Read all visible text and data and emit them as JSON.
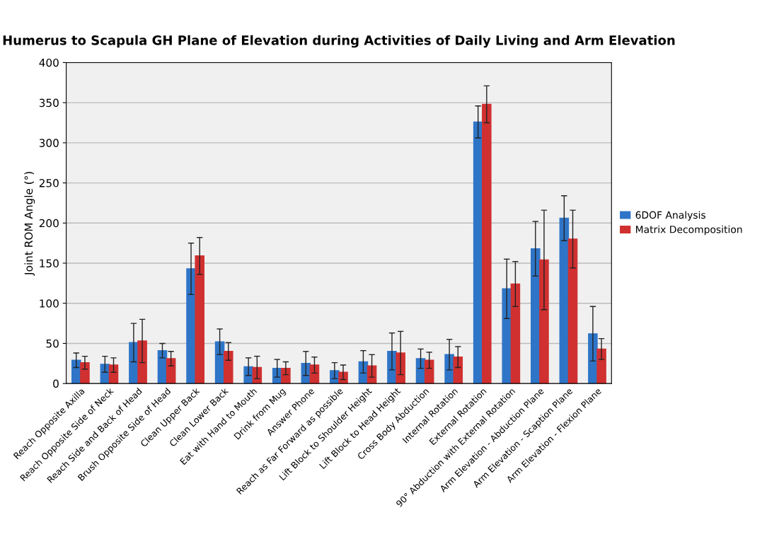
{
  "chart_data": {
    "type": "bar",
    "title": "Humerus to Scapula GH Plane of Elevation during Activities of Daily Living and Arm Elevation",
    "ylabel": "Joint ROM Angle (°)",
    "categories": [
      "Reach Opposite Axilla",
      "Reach Opposite Side of Neck",
      "Reach Side and Back of Head",
      "Brush Opposite Side of Head",
      "Clean Upper Back",
      "Clean Lower Back",
      "Eat with Hand to Mouth",
      "Drink from Mug",
      "Answer Phone",
      "Reach as Far Forward as possible",
      "Lift Block to Shoulder Height",
      "Lift Block to Head Height",
      "Cross Body Abduction",
      "Internal Rotation",
      "External Rotation",
      "90° Abduction with External Rotation",
      "Arm Elevation - Abduction Plane",
      "Arm Elevation - Scaption Plane",
      "Arm Elevation - Flexion Plane"
    ],
    "series": [
      {
        "name": "6DOF Analysis",
        "color": "#2e75c8",
        "values": [
          29,
          24,
          51,
          41,
          143,
          52,
          21,
          19,
          25,
          16,
          27,
          40,
          31,
          36,
          326,
          118,
          168,
          206,
          62
        ],
        "errors": [
          9,
          10,
          24,
          9,
          32,
          16,
          11,
          11,
          15,
          10,
          14,
          23,
          12,
          19,
          20,
          37,
          34,
          28,
          34
        ]
      },
      {
        "name": "Matrix Decomposition",
        "color": "#d03030",
        "values": [
          26,
          23,
          53,
          31,
          159,
          40,
          20,
          19,
          23,
          14,
          22,
          38,
          29,
          33,
          348,
          124,
          154,
          180,
          43
        ],
        "errors": [
          8,
          9,
          27,
          9,
          23,
          11,
          14,
          8,
          10,
          9,
          14,
          27,
          10,
          13,
          23,
          28,
          62,
          36,
          13
        ]
      }
    ],
    "ylim": [
      0,
      400
    ],
    "yticks": [
      0,
      50,
      100,
      150,
      200,
      250,
      300,
      350,
      400
    ],
    "grid": "y",
    "legend": "right"
  }
}
